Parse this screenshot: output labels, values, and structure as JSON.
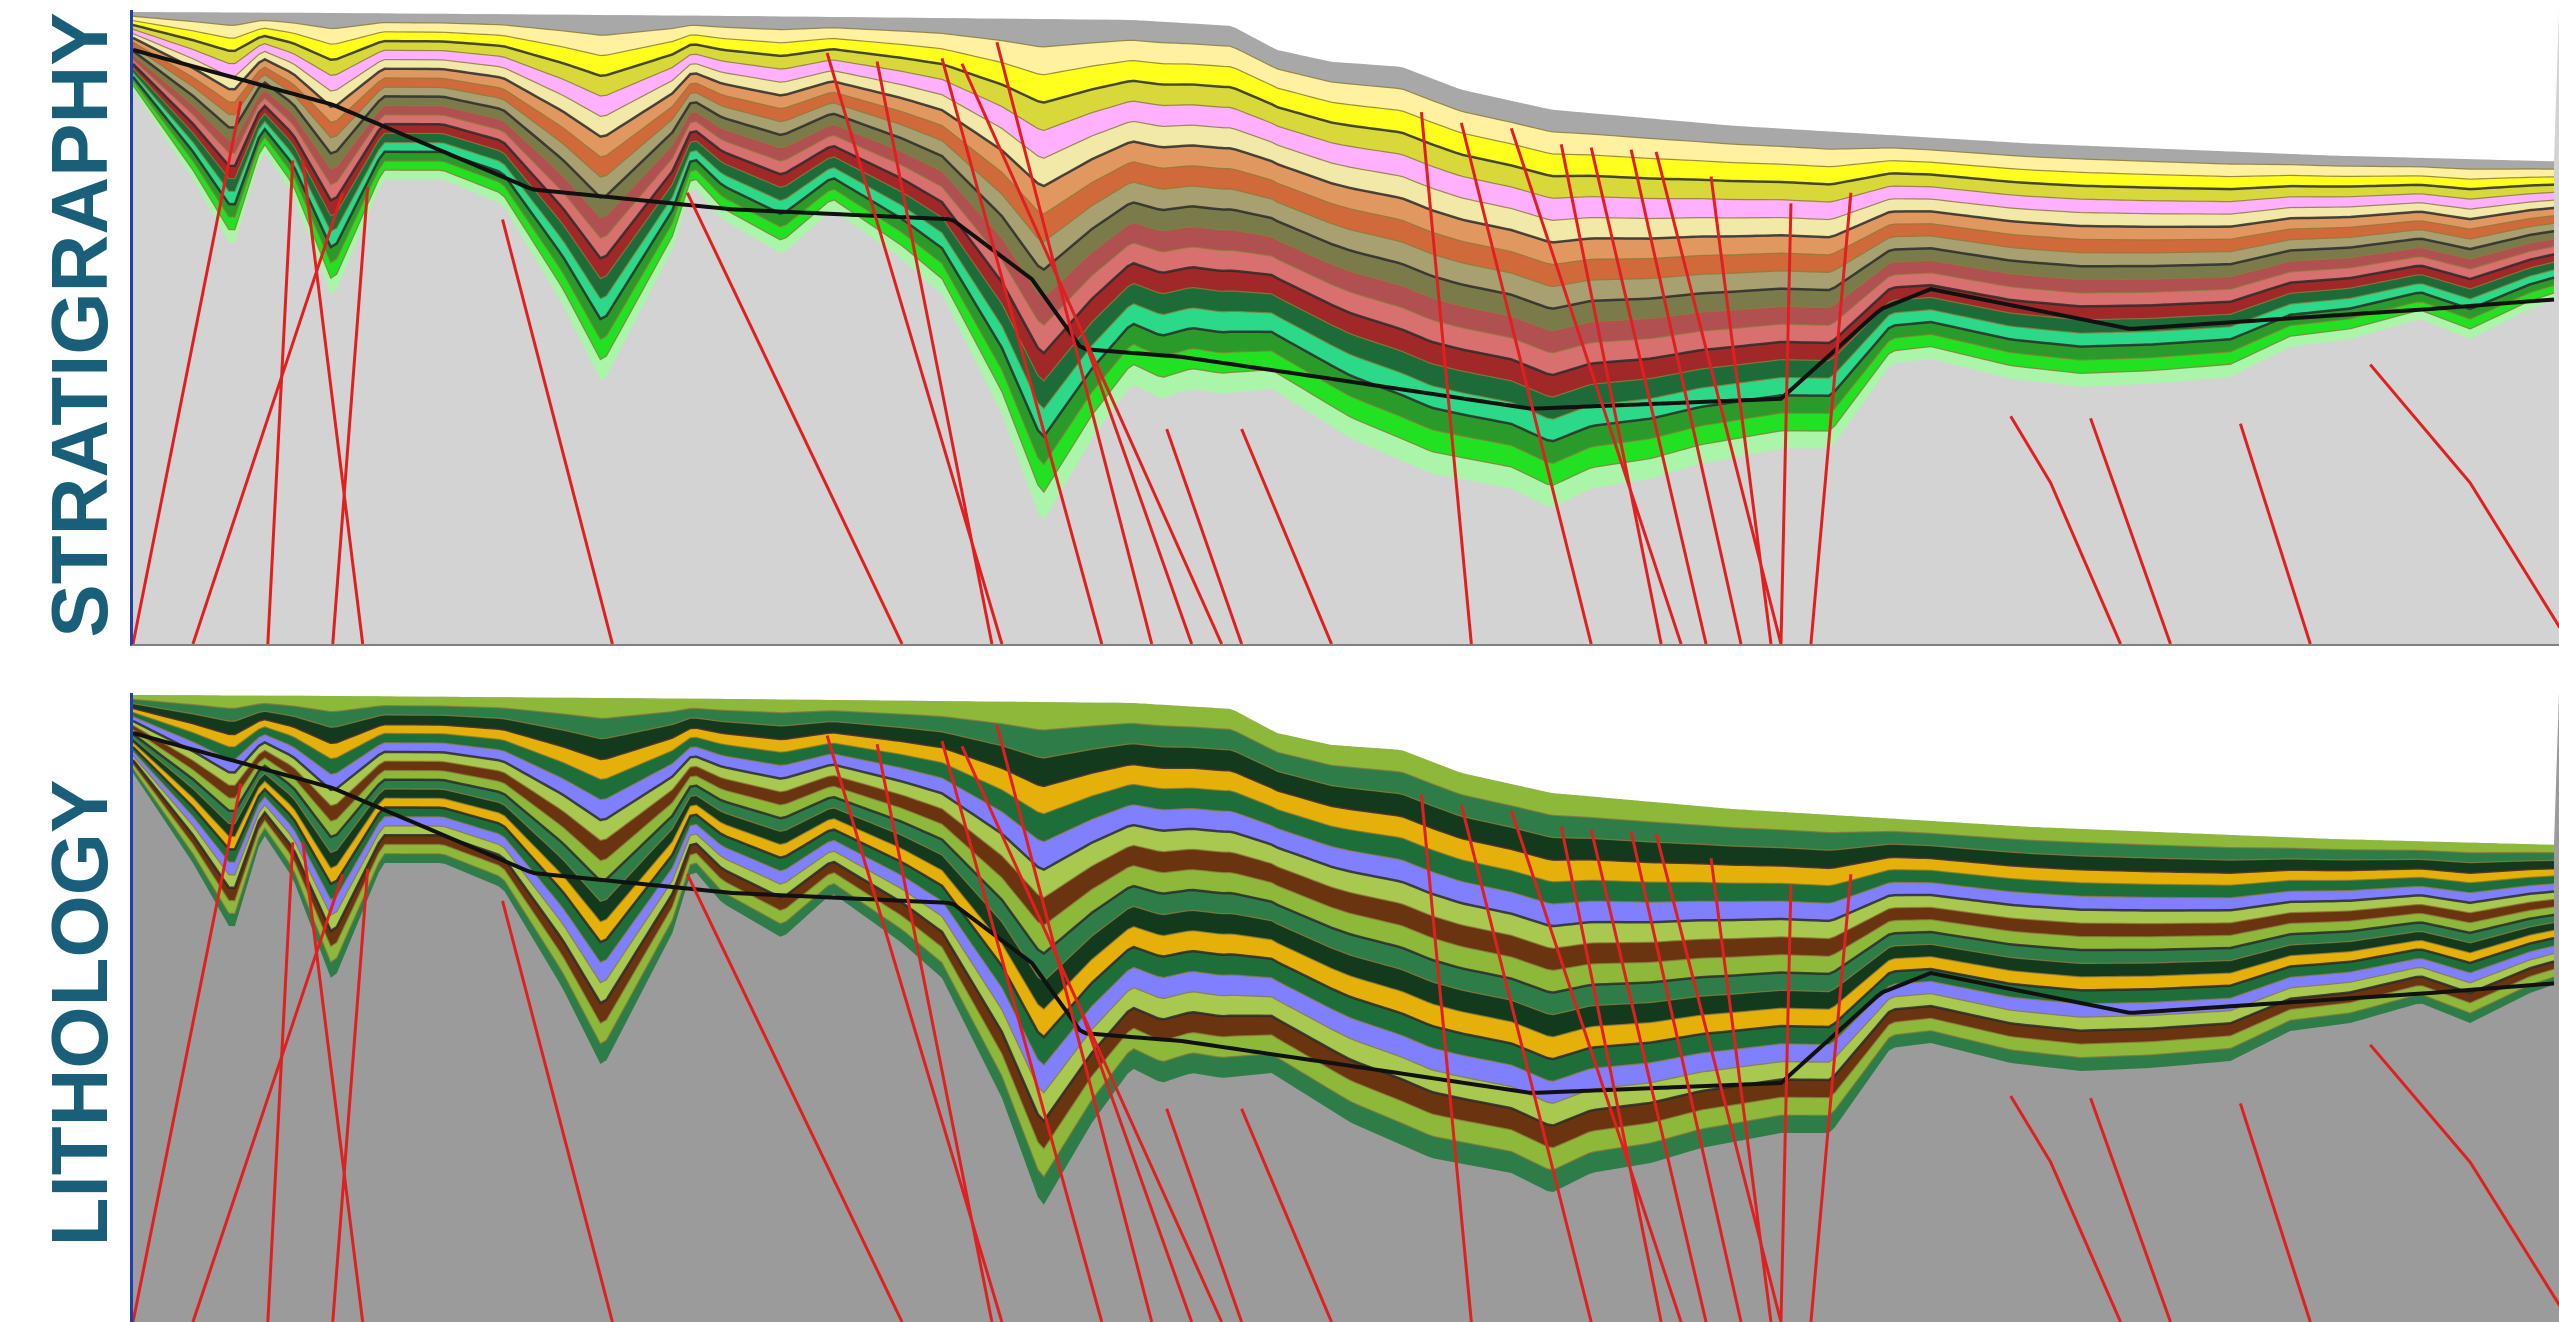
{
  "labels": {
    "stratigraphy": "STRATIGRAPHY",
    "lithology": "LITHOLOGY"
  },
  "colors": {
    "label": "#1a5f7a",
    "fault": "#e02020",
    "basement_stratigraphy": "#d3d3d3",
    "basement_lithology": "#9b9b9b",
    "axis": "#1f3fb0"
  },
  "stratigraphy_layer_colors": [
    "#a8a8a8",
    "#fff1a0",
    "#ffff1e",
    "#d8d83a",
    "#ffb0ff",
    "#f2e8a8",
    "#e09860",
    "#d06a3a",
    "#a8a070",
    "#7a7a4a",
    "#b05050",
    "#d87070",
    "#a02828",
    "#1d6b38",
    "#2bd988",
    "#2a9a2a",
    "#22e022",
    "#aaf5aa"
  ],
  "lithology_layer_colors": [
    "#8db83a",
    "#2e7d48",
    "#143a1e",
    "#e6b00a",
    "#1e6e3a",
    "#7f7fff",
    "#a8c850",
    "#6b3410"
  ]
}
